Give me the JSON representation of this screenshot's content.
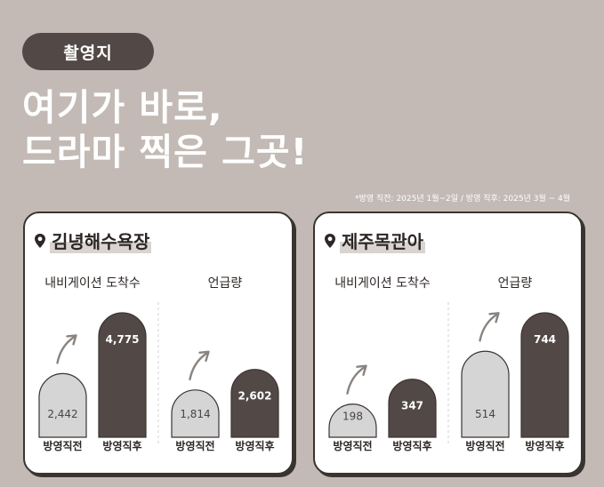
{
  "badge": "촬영지",
  "headline": {
    "line1": "여기가 바로,",
    "line2": "드라마 찍은 그곳!"
  },
  "note": "*방영 직전: 2025년 1월~2일 / 방영 직후: 2025년 3월 ~ 4월",
  "colors": {
    "before": "#d5d5d5",
    "after": "#524845",
    "background": "#c3bab5"
  },
  "chart_data": [
    {
      "type": "bar",
      "title": "김녕해수욕장",
      "groups": [
        {
          "label": "내비게이션 도착수",
          "categories": [
            "방영직전",
            "방영직후"
          ],
          "values": [
            2442,
            4775
          ],
          "value_labels": [
            "2,442",
            "4,775"
          ]
        },
        {
          "label": "언급량",
          "categories": [
            "방영직전",
            "방영직후"
          ],
          "values": [
            1814,
            2602
          ],
          "value_labels": [
            "1,814",
            "2,602"
          ]
        }
      ]
    },
    {
      "type": "bar",
      "title": "제주목관아",
      "groups": [
        {
          "label": "내비게이션 도착수",
          "categories": [
            "방영직전",
            "방영직후"
          ],
          "values": [
            198,
            347
          ],
          "value_labels": [
            "198",
            "347"
          ]
        },
        {
          "label": "언급량",
          "categories": [
            "방영직전",
            "방영직후"
          ],
          "values": [
            514,
            744
          ],
          "value_labels": [
            "514",
            "744"
          ]
        }
      ]
    }
  ]
}
